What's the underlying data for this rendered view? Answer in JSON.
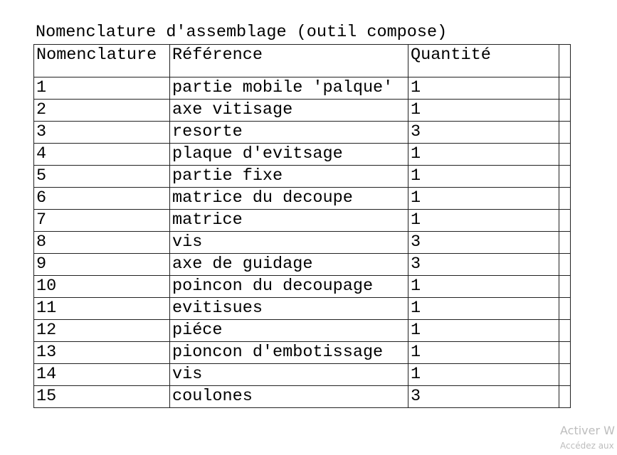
{
  "title": "Nomenclature d'assemblage (outil compose)",
  "table": {
    "headers": [
      "Nomenclature",
      "Référence",
      "Quantité",
      ""
    ],
    "rows": [
      [
        "1",
        "partie mobile 'palque'",
        "1"
      ],
      [
        "2",
        "axe vitisage",
        "1"
      ],
      [
        "3",
        "resorte",
        "3"
      ],
      [
        "4",
        "plaque d'evitsage",
        "1"
      ],
      [
        "5",
        "partie fixe",
        "1"
      ],
      [
        "6",
        "matrice du decoupe",
        "1"
      ],
      [
        "7",
        "matrice",
        "1"
      ],
      [
        "8",
        "vis",
        "3"
      ],
      [
        "9",
        "axe de guidage",
        "3"
      ],
      [
        "10",
        "poincon du decoupage",
        "1"
      ],
      [
        "11",
        "evitisues",
        "1"
      ],
      [
        "12",
        "piéce",
        "1"
      ],
      [
        "13",
        "pioncon d'embotissage",
        "1"
      ],
      [
        "14",
        "vis",
        "1"
      ],
      [
        "15",
        "coulones",
        "3"
      ]
    ]
  },
  "watermark": {
    "line1": "Activer W",
    "line2": "Accédez aux"
  }
}
